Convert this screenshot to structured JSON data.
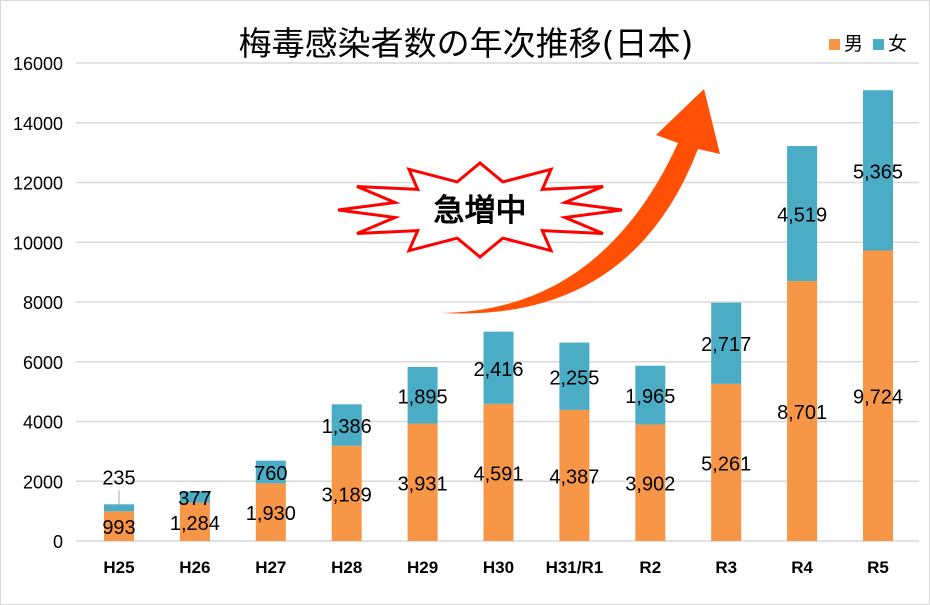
{
  "chart_data": {
    "type": "bar",
    "stacked": true,
    "title": "梅毒感染者数の年次推移(日本)",
    "categories": [
      "H25",
      "H26",
      "H27",
      "H28",
      "H29",
      "H30",
      "H31/R1",
      "R2",
      "R3",
      "R4",
      "R5"
    ],
    "series": [
      {
        "name": "男",
        "color": "#F79646",
        "values": [
          993,
          1284,
          1930,
          3189,
          3931,
          4591,
          4387,
          3902,
          5261,
          8701,
          9724
        ]
      },
      {
        "name": "女",
        "color": "#4BACC6",
        "values": [
          235,
          377,
          760,
          1386,
          1895,
          2416,
          2255,
          1965,
          2717,
          4519,
          5365
        ]
      }
    ],
    "data_labels": {
      "男": [
        "993",
        "1,284",
        "1,930",
        "3,189",
        "3,931",
        "4,591",
        "4,387",
        "3,902",
        "5,261",
        "8,701",
        "9,724"
      ],
      "女": [
        "235",
        "377",
        "760",
        "1,386",
        "1,895",
        "2,416",
        "2,255",
        "1,965",
        "2,717",
        "4,519",
        "5,365"
      ]
    },
    "ylim": [
      0,
      16000
    ],
    "yticks": [
      "0",
      "2000",
      "4000",
      "6000",
      "8000",
      "10000",
      "12000",
      "14000",
      "16000"
    ],
    "grid": true,
    "legend_position": "top-right",
    "annotation": {
      "text": "急増中",
      "burst_color": "#FF0000",
      "arrow_color": "#FF5005"
    }
  }
}
